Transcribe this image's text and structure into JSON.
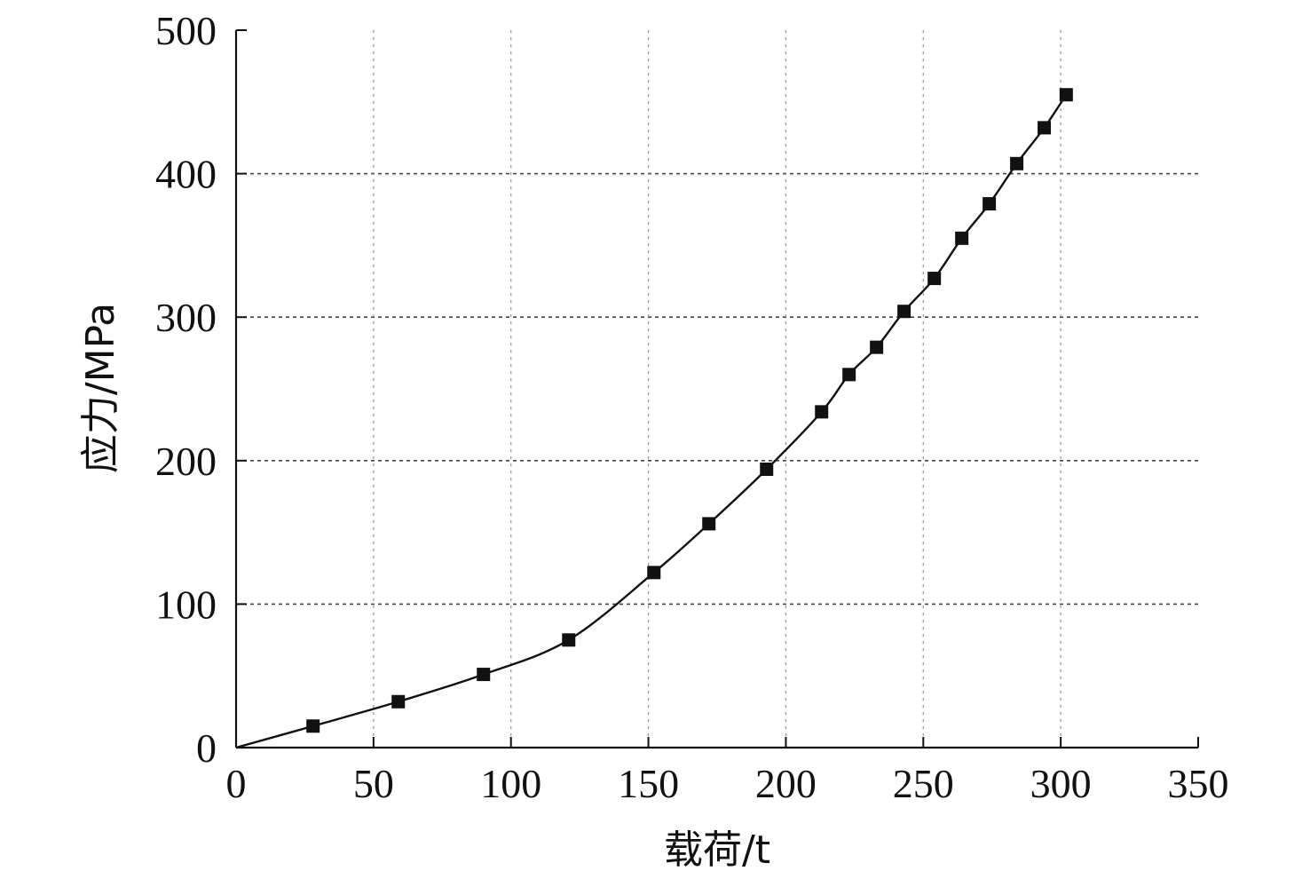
{
  "chart_data": {
    "type": "line",
    "title": "",
    "xlabel": "载荷/t",
    "ylabel": "应力/MPa",
    "xlim": [
      0,
      350
    ],
    "ylim": [
      0,
      500
    ],
    "xticks": [
      0,
      50,
      100,
      150,
      200,
      250,
      300,
      350
    ],
    "yticks": [
      0,
      100,
      200,
      300,
      400,
      500
    ],
    "grid": true,
    "legend": "none",
    "marker": "square",
    "series": [
      {
        "color": "#111111",
        "x": [
          0,
          28,
          59,
          90,
          121,
          152,
          172,
          193,
          213,
          223,
          233,
          243,
          254,
          264,
          274,
          284,
          294,
          302
        ],
        "y": [
          0,
          15,
          32,
          51,
          75,
          122,
          156,
          194,
          234,
          260,
          279,
          304,
          327,
          355,
          379,
          407,
          432,
          455
        ]
      }
    ]
  }
}
